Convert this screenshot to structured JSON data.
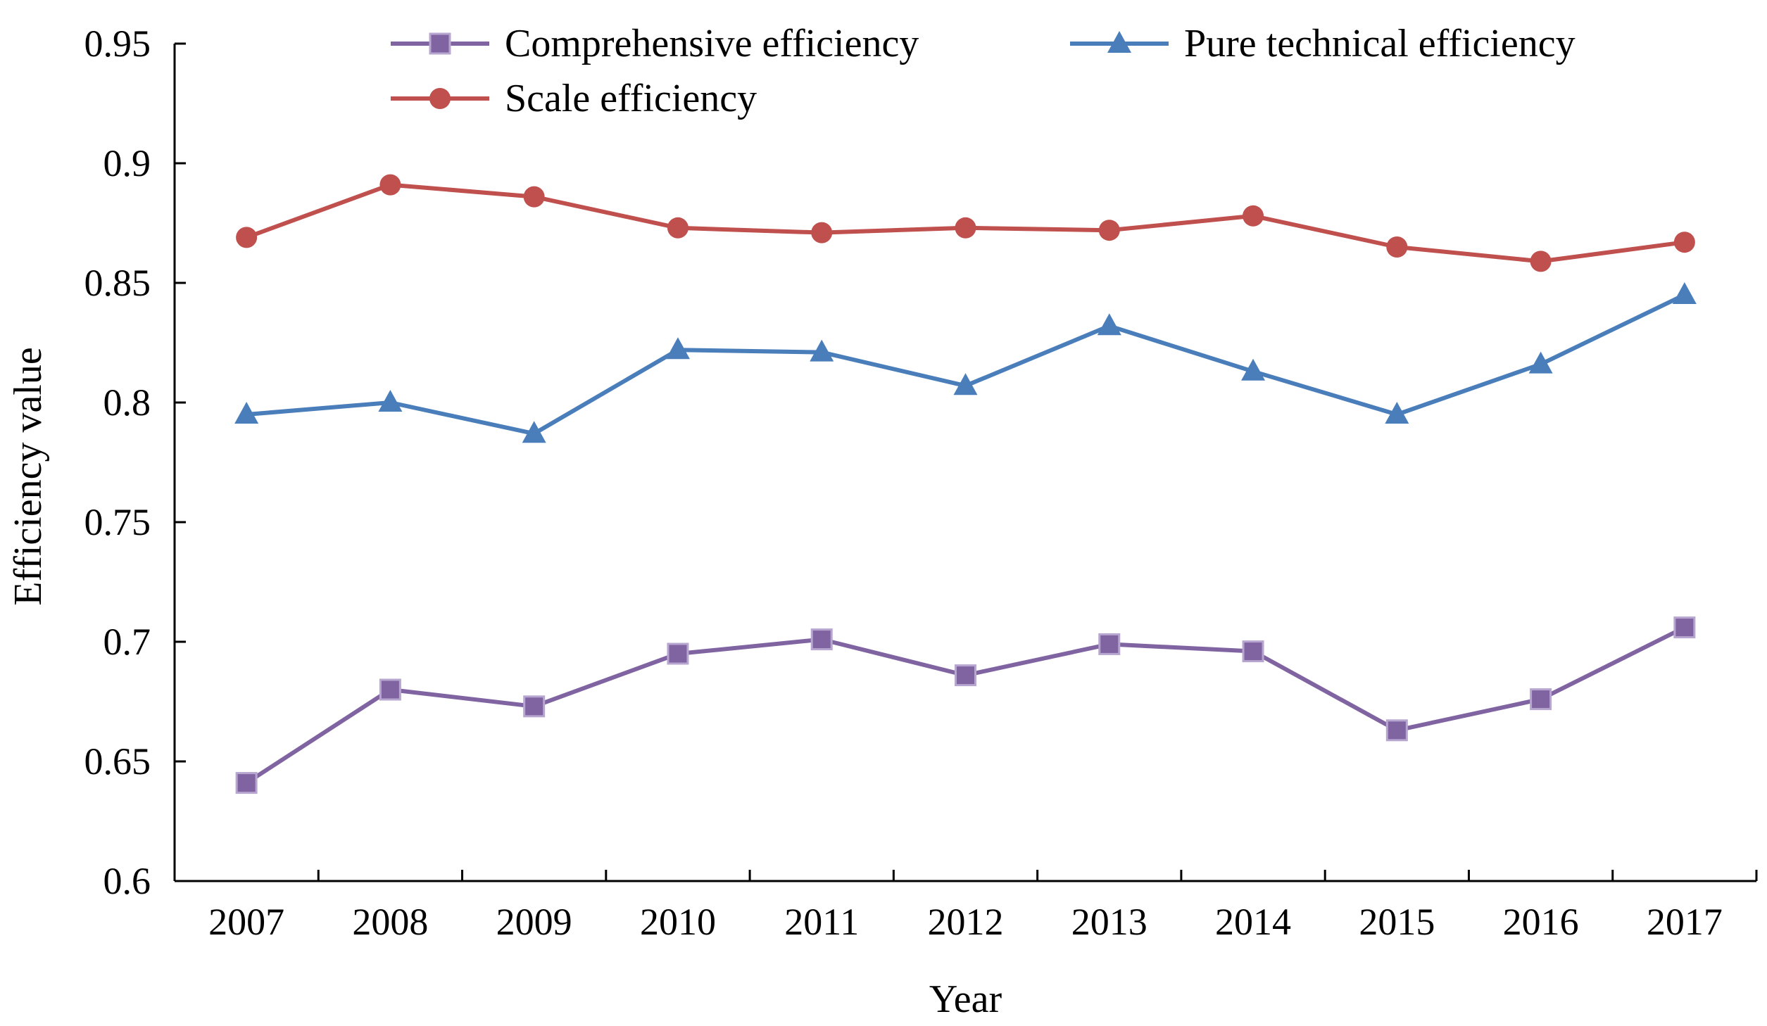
{
  "chart_data": {
    "type": "line",
    "title": "",
    "xlabel": "Year",
    "ylabel": "Efficiency value",
    "categories": [
      "2007",
      "2008",
      "2009",
      "2010",
      "2011",
      "2012",
      "2013",
      "2014",
      "2015",
      "2016",
      "2017"
    ],
    "ylim": [
      0.6,
      0.95
    ],
    "yticks": [
      "0.6",
      "0.65",
      "0.7",
      "0.75",
      "0.8",
      "0.85",
      "0.9",
      "0.95"
    ],
    "grid": false,
    "legend_position": "top",
    "series": [
      {
        "name": "Comprehensive efficiency",
        "color": "#8064a2",
        "marker": "square",
        "values": [
          0.641,
          0.68,
          0.673,
          0.695,
          0.701,
          0.686,
          0.699,
          0.696,
          0.663,
          0.676,
          0.706
        ]
      },
      {
        "name": "Pure technical efficiency",
        "color": "#4a7ebb",
        "marker": "triangle",
        "values": [
          0.795,
          0.8,
          0.787,
          0.822,
          0.821,
          0.807,
          0.832,
          0.813,
          0.795,
          0.816,
          0.845
        ]
      },
      {
        "name": "Scale efficiency",
        "color": "#c0504d",
        "marker": "circle",
        "values": [
          0.869,
          0.891,
          0.886,
          0.873,
          0.871,
          0.873,
          0.872,
          0.878,
          0.865,
          0.859,
          0.867
        ]
      }
    ]
  }
}
